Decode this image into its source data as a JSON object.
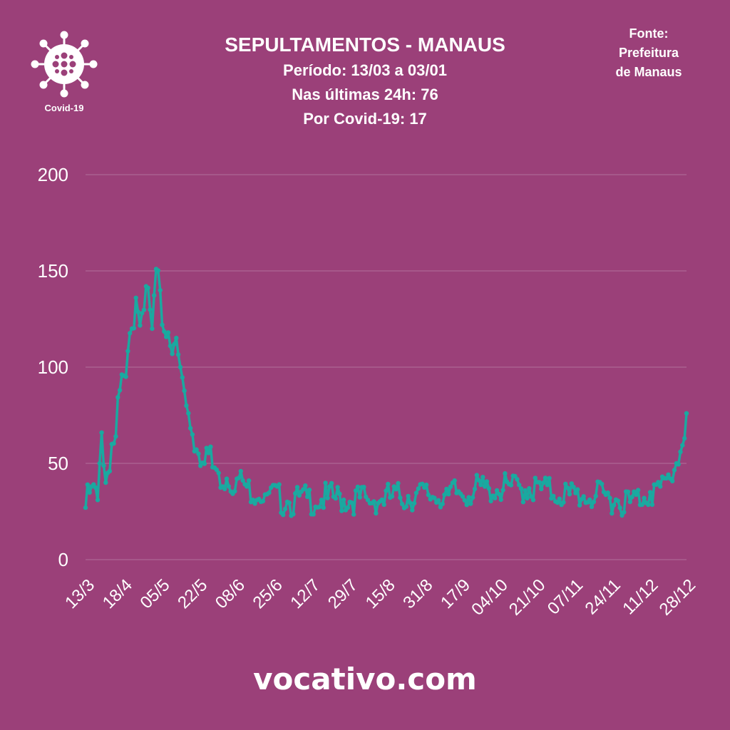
{
  "header": {
    "title": "SEPULTAMENTOS - MANAUS",
    "line1": "Período: 13/03 a 03/01",
    "line2": "Nas últimas 24h: 76",
    "line3": "Por Covid-19: 17"
  },
  "source": {
    "line1": "Fonte:",
    "line2": "Prefeitura",
    "line3": "de Manaus"
  },
  "logo": {
    "label": "Covid-19",
    "icon": "virus-icon"
  },
  "footer": {
    "text": "vocativo.com"
  },
  "colors": {
    "background": "#9b4079",
    "line": "#1aa9a0",
    "grid": "#b0709a",
    "text": "#ffffff"
  },
  "chart_data": {
    "type": "line",
    "title": "SEPULTAMENTOS - MANAUS",
    "xlabel": "",
    "ylabel": "",
    "ylim": [
      0,
      200
    ],
    "yticks": [
      0,
      50,
      100,
      150,
      200
    ],
    "xtick_labels": [
      "13/3",
      "18/4",
      "05/5",
      "22/5",
      "08/6",
      "25/6",
      "12/7",
      "29/7",
      "15/8",
      "31/8",
      "17/9",
      "04/10",
      "21/10",
      "07/11",
      "24/11",
      "11/12",
      "28/12"
    ],
    "grid": true,
    "legend": "none",
    "anchors": [
      [
        0,
        27
      ],
      [
        3,
        38
      ],
      [
        6,
        31
      ],
      [
        8,
        66
      ],
      [
        10,
        40
      ],
      [
        13,
        60
      ],
      [
        15,
        64
      ],
      [
        17,
        88
      ],
      [
        20,
        95
      ],
      [
        23,
        120
      ],
      [
        25,
        136
      ],
      [
        28,
        128
      ],
      [
        30,
        142
      ],
      [
        33,
        120
      ],
      [
        35,
        151
      ],
      [
        38,
        122
      ],
      [
        41,
        118
      ],
      [
        44,
        112
      ],
      [
        47,
        100
      ],
      [
        50,
        80
      ],
      [
        53,
        65
      ],
      [
        56,
        55
      ],
      [
        60,
        58
      ],
      [
        63,
        48
      ],
      [
        66,
        45
      ],
      [
        70,
        42
      ],
      [
        75,
        42
      ],
      [
        80,
        38
      ],
      [
        90,
        34
      ],
      [
        100,
        30
      ],
      [
        120,
        32
      ],
      [
        140,
        31
      ],
      [
        160,
        33
      ],
      [
        180,
        34
      ],
      [
        200,
        37
      ],
      [
        220,
        37
      ],
      [
        240,
        34
      ],
      [
        260,
        32
      ],
      [
        270,
        30
      ],
      [
        280,
        35
      ],
      [
        285,
        38
      ],
      [
        290,
        42
      ],
      [
        293,
        50
      ],
      [
        295,
        56
      ],
      [
        297,
        63
      ],
      [
        298,
        76
      ]
    ],
    "peak": [
      35,
      151
    ],
    "last": [
      298,
      76
    ]
  }
}
